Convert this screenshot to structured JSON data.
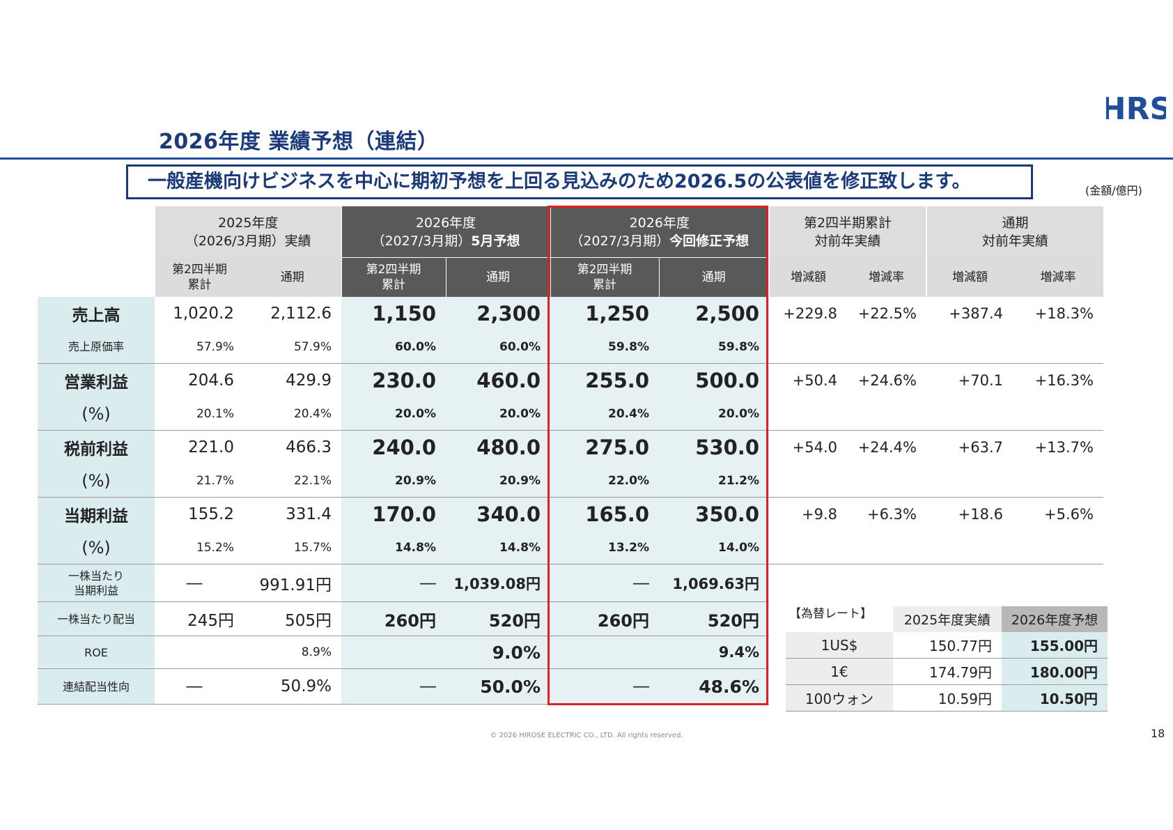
{
  "header": {
    "logo_text": "HRS",
    "title": "2026年度 業績予想（連結）",
    "banner": "一般産機向けビジネスを中心に期初予想を上回る見込みのため2026.5の公表値を修正致します。",
    "unit": "(金額/億円)"
  },
  "columns": {
    "fy2025": {
      "line1": "2025年度",
      "line2": "（2026/3月期）実績"
    },
    "fy2026_may": {
      "line1": "2026年度",
      "line2a": "（2027/3月期）",
      "line2b": "5月予想"
    },
    "fy2026_rev": {
      "line1": "2026年度",
      "line2a": "（2027/3月期）",
      "line2b": "今回修正予想"
    },
    "q2_yoy": {
      "line1": "第2四半期累計",
      "line2": "対前年実績"
    },
    "full_yoy": {
      "line1": "通期",
      "line2": "対前年実績"
    },
    "sub_q2_l1": "第2四半期",
    "sub_q2_l2": "累計",
    "sub_full": "通期",
    "sub_diff": "増減額",
    "sub_rate": "増減率"
  },
  "rows": [
    {
      "label": "売上高",
      "q2_25": "1,020.2",
      "full_25": "2,112.6",
      "q2_may": "1,150",
      "full_may": "2,300",
      "q2_rev": "1,250",
      "full_rev": "2,500",
      "q2_diff": "+229.8",
      "q2_rate": "+22.5%",
      "full_diff": "+387.4",
      "full_rate": "+18.3%"
    },
    {
      "label": "売上原価率",
      "q2_25": "57.9%",
      "full_25": "57.9%",
      "q2_may": "60.0%",
      "full_may": "60.0%",
      "q2_rev": "59.8%",
      "full_rev": "59.8%"
    },
    {
      "label": "営業利益",
      "q2_25": "204.6",
      "full_25": "429.9",
      "q2_may": "230.0",
      "full_may": "460.0",
      "q2_rev": "255.0",
      "full_rev": "500.0",
      "q2_diff": "+50.4",
      "q2_rate": "+24.6%",
      "full_diff": "+70.1",
      "full_rate": "+16.3%"
    },
    {
      "label": "(%)",
      "q2_25": "20.1%",
      "full_25": "20.4%",
      "q2_may": "20.0%",
      "full_may": "20.0%",
      "q2_rev": "20.4%",
      "full_rev": "20.0%"
    },
    {
      "label": "税前利益",
      "q2_25": "221.0",
      "full_25": "466.3",
      "q2_may": "240.0",
      "full_may": "480.0",
      "q2_rev": "275.0",
      "full_rev": "530.0",
      "q2_diff": "+54.0",
      "q2_rate": "+24.4%",
      "full_diff": "+63.7",
      "full_rate": "+13.7%"
    },
    {
      "label": "(%)",
      "q2_25": "21.7%",
      "full_25": "22.1%",
      "q2_may": "20.9%",
      "full_may": "20.9%",
      "q2_rev": "22.0%",
      "full_rev": "21.2%"
    },
    {
      "label": "当期利益",
      "q2_25": "155.2",
      "full_25": "331.4",
      "q2_may": "170.0",
      "full_may": "340.0",
      "q2_rev": "165.0",
      "full_rev": "350.0",
      "q2_diff": "+9.8",
      "q2_rate": "+6.3%",
      "full_diff": "+18.6",
      "full_rate": "+5.6%"
    },
    {
      "label": "(%)",
      "q2_25": "15.2%",
      "full_25": "15.7%",
      "q2_may": "14.8%",
      "full_may": "14.8%",
      "q2_rev": "13.2%",
      "full_rev": "14.0%"
    },
    {
      "label_l1": "一株当たり",
      "label_l2": "当期利益",
      "q2_25": "―",
      "full_25": "991.91円",
      "q2_may": "―",
      "full_may": "1,039.08円",
      "q2_rev": "―",
      "full_rev": "1,069.63円"
    },
    {
      "label": "一株当たり配当",
      "q2_25": "245円",
      "full_25": "505円",
      "q2_may": "260円",
      "full_may": "520円",
      "q2_rev": "260円",
      "full_rev": "520円"
    },
    {
      "label": "ROE",
      "q2_25": "",
      "full_25": "8.9%",
      "q2_may": "",
      "full_may": "9.0%",
      "q2_rev": "",
      "full_rev": "9.4%"
    },
    {
      "label": "連結配当性向",
      "q2_25": "―",
      "full_25": "50.9%",
      "q2_may": "―",
      "full_may": "50.0%",
      "q2_rev": "―",
      "full_rev": "48.6%"
    }
  ],
  "fx": {
    "label": "【為替レート】",
    "col_2025": "2025年度実績",
    "col_2026": "2026年度予想",
    "rows": [
      {
        "currency": "1US$",
        "v2025": "150.77円",
        "v2026": "155.00円"
      },
      {
        "currency": "1€",
        "v2025": "174.79円",
        "v2026": "180.00円"
      },
      {
        "currency": "100ウォン",
        "v2025": "10.59円",
        "v2026": "10.50円"
      }
    ]
  },
  "footer": {
    "copyright": "© 2026 HIROSE ELECTRIC CO., LTD. All rights reserved.",
    "page": "18"
  },
  "colors": {
    "navy": "#1a3a7a",
    "red_frame": "#e02020",
    "tint": "#dbecee",
    "dark_header": "#595959"
  }
}
